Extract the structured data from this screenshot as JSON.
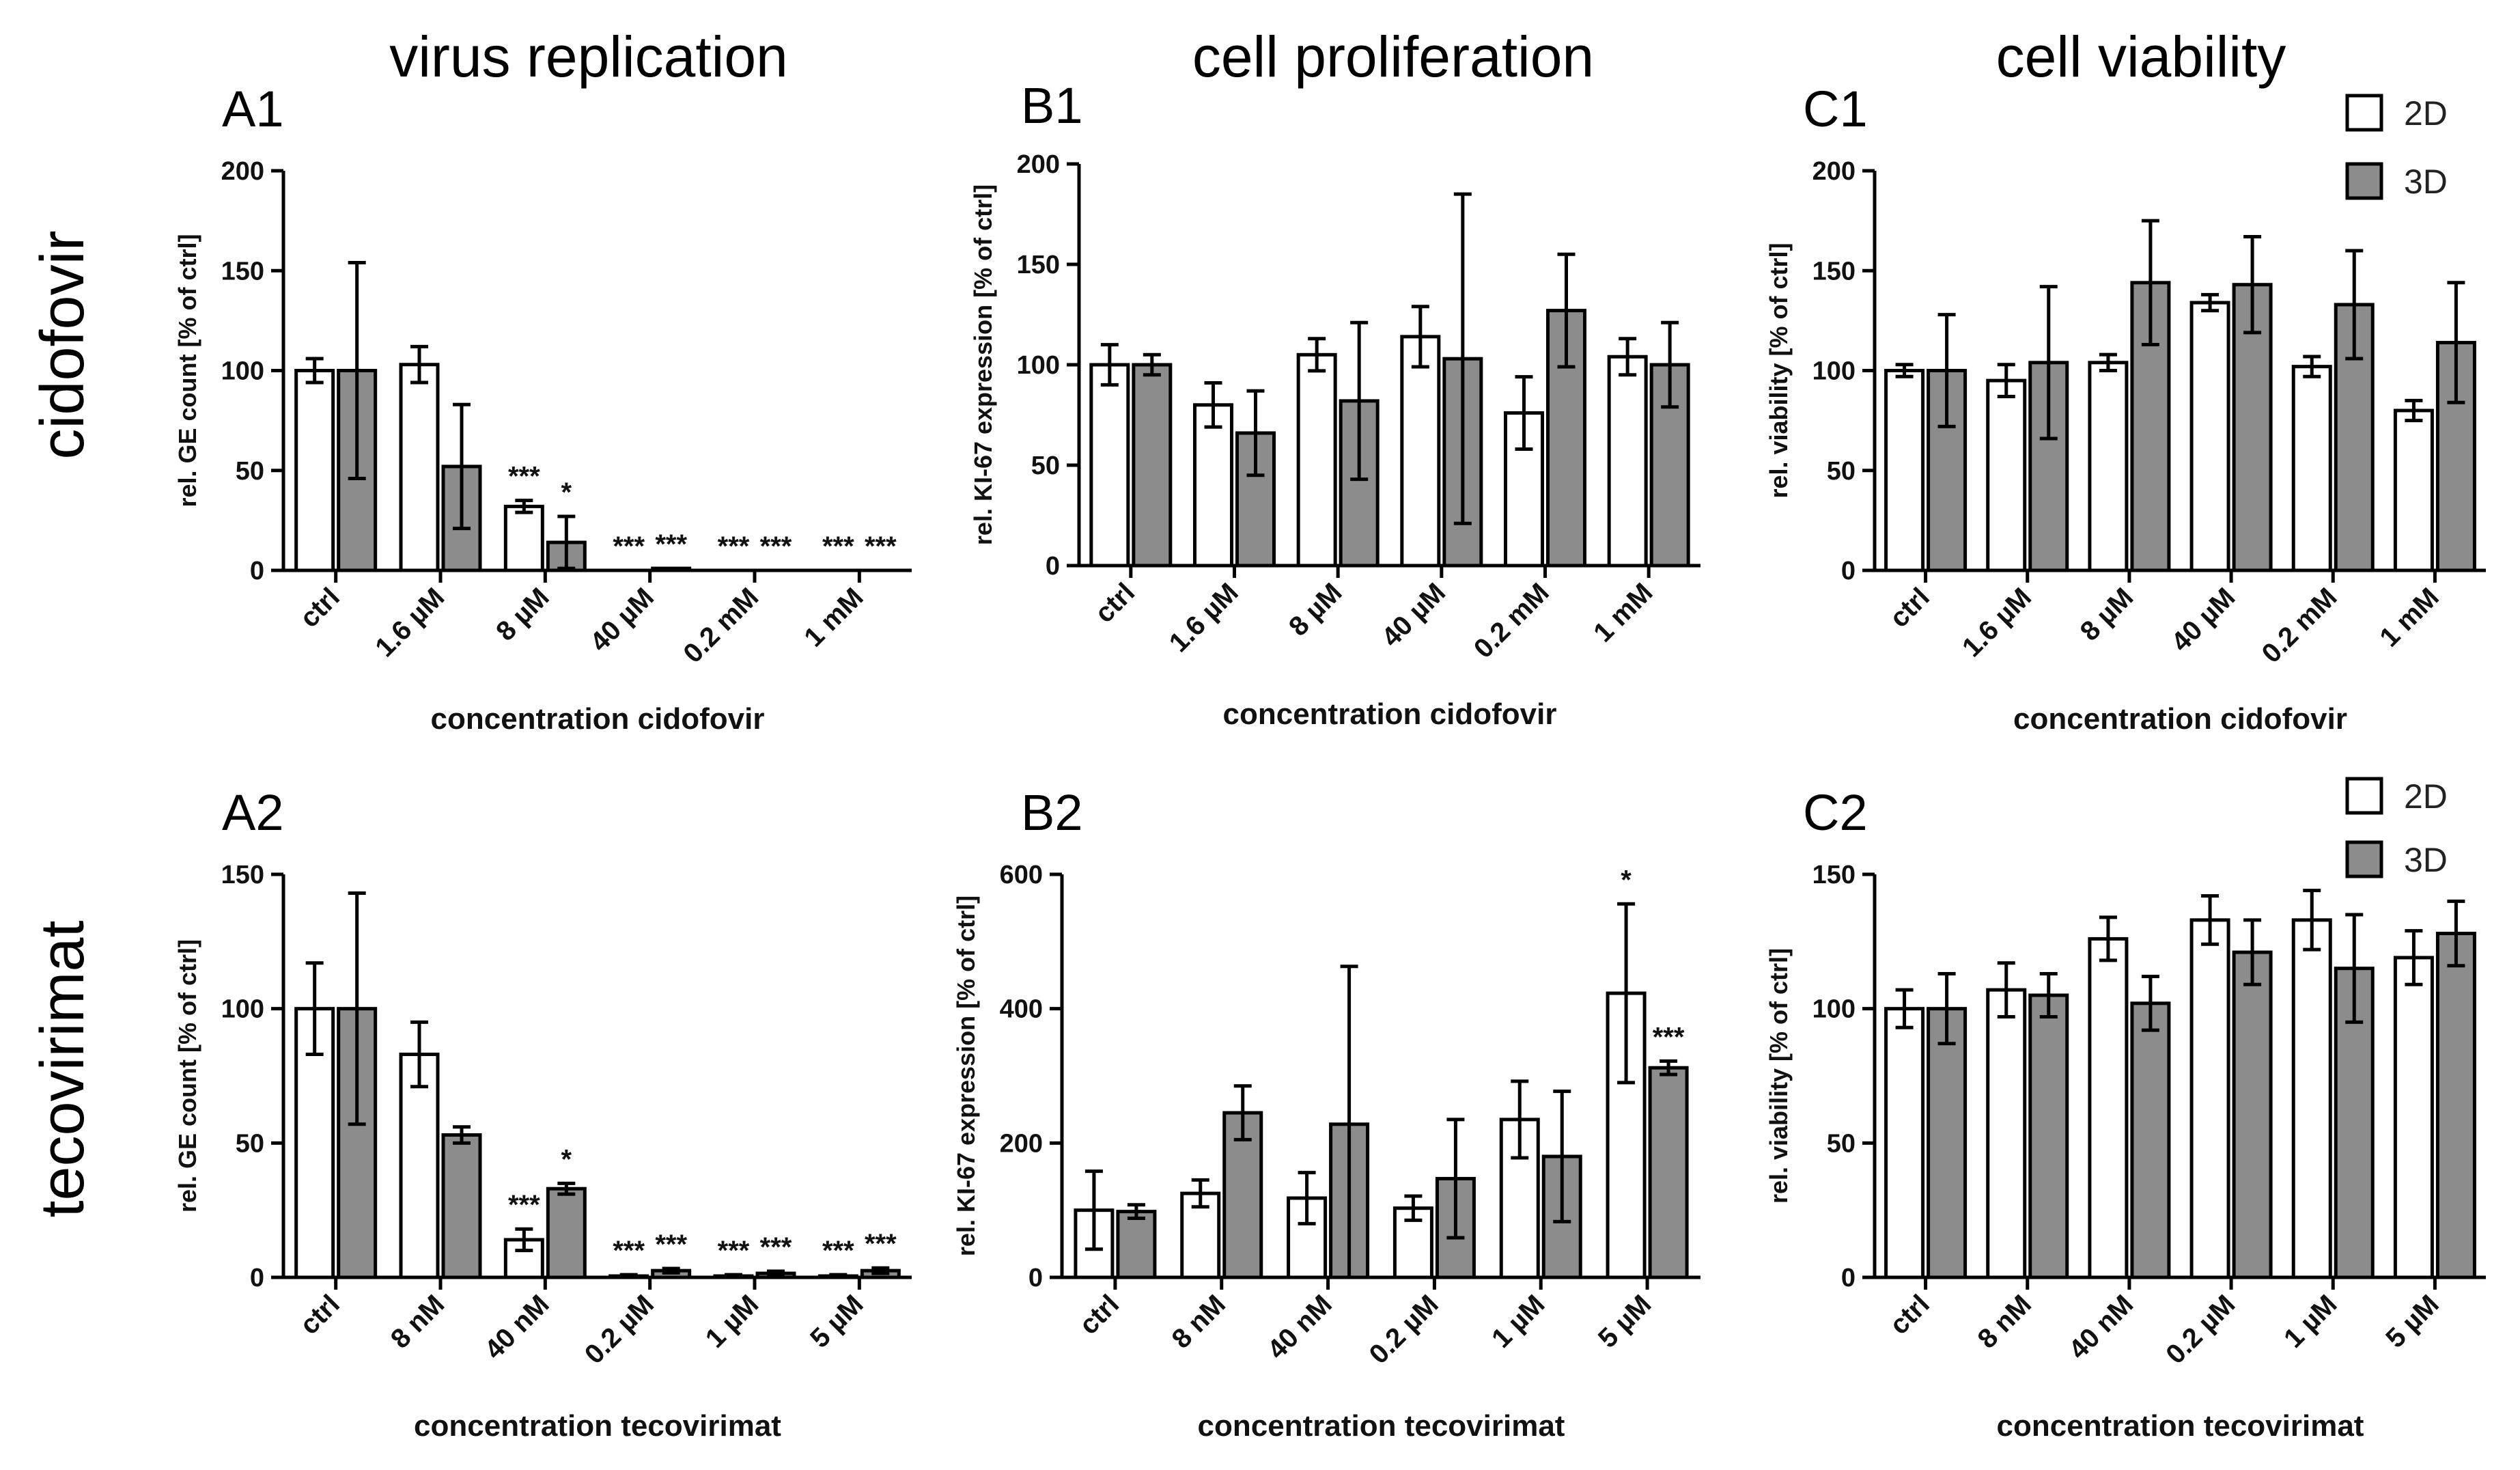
{
  "headers": [
    "virus replication",
    "cell proliferation",
    "cell viability"
  ],
  "row_labels": [
    "cidofovir",
    "tecovirimat"
  ],
  "legend": {
    "entries": [
      {
        "name": "2D",
        "color": "#ffffff"
      },
      {
        "name": "3D",
        "color": "#8c8c8c"
      }
    ]
  },
  "chart_data": [
    {
      "panel": "A1",
      "type": "bar",
      "categories": [
        "ctrl",
        "1.6 µM",
        "8 µM",
        "40 µM",
        "0.2 mM",
        "1 mM"
      ],
      "series": [
        {
          "name": "2D",
          "values": [
            100,
            103,
            32,
            0,
            0,
            0
          ],
          "errors": [
            6,
            9,
            3,
            0,
            0,
            0
          ],
          "sig": [
            "",
            "",
            "***",
            "***",
            "***",
            "***"
          ]
        },
        {
          "name": "3D",
          "values": [
            100,
            52,
            14,
            1,
            0,
            0
          ],
          "errors": [
            54,
            31,
            13,
            0,
            0,
            0
          ],
          "sig": [
            "",
            "",
            "*",
            "***",
            "***",
            "***"
          ]
        }
      ],
      "ylabel": "rel. GE count [% of ctrl]",
      "xlabel": "concentration cidofovir",
      "ylim": [
        0,
        200
      ],
      "yticks": [
        "0",
        "50",
        "100",
        "150",
        "200"
      ]
    },
    {
      "panel": "B1",
      "type": "bar",
      "categories": [
        "ctrl",
        "1.6 µM",
        "8 µM",
        "40 µM",
        "0.2 mM",
        "1 mM"
      ],
      "series": [
        {
          "name": "2D",
          "values": [
            100,
            80,
            105,
            114,
            76,
            104
          ],
          "errors": [
            10,
            11,
            8,
            15,
            18,
            9
          ],
          "sig": [
            "",
            "",
            "",
            "",
            "",
            ""
          ]
        },
        {
          "name": "3D",
          "values": [
            100,
            66,
            82,
            103,
            127,
            100
          ],
          "errors": [
            5,
            21,
            39,
            82,
            28,
            21
          ],
          "sig": [
            "",
            "",
            "",
            "",
            "",
            ""
          ]
        }
      ],
      "ylabel": "rel. KI-67 expression [% of ctrl]",
      "xlabel": "concentration cidofovir",
      "ylim": [
        0,
        200
      ],
      "yticks": [
        "0",
        "50",
        "100",
        "150",
        "200"
      ]
    },
    {
      "panel": "C1",
      "type": "bar",
      "categories": [
        "ctrl",
        "1.6 µM",
        "8 µM",
        "40 µM",
        "0.2 mM",
        "1 mM"
      ],
      "series": [
        {
          "name": "2D",
          "values": [
            100,
            95,
            104,
            134,
            102,
            80
          ],
          "errors": [
            3,
            8,
            4,
            4,
            5,
            5
          ],
          "sig": [
            "",
            "",
            "",
            "",
            "",
            ""
          ]
        },
        {
          "name": "3D",
          "values": [
            100,
            104,
            144,
            143,
            133,
            114
          ],
          "errors": [
            28,
            38,
            31,
            24,
            27,
            30
          ],
          "sig": [
            "",
            "",
            "",
            "",
            "",
            ""
          ]
        }
      ],
      "ylabel": "rel. viability [% of ctrl]",
      "xlabel": "concentration cidofovir",
      "ylim": [
        0,
        200
      ],
      "yticks": [
        "0",
        "50",
        "100",
        "150",
        "200"
      ]
    },
    {
      "panel": "A2",
      "type": "bar",
      "categories": [
        "ctrl",
        "8 nM",
        "40 nM",
        "0.2 µM",
        "1 µM",
        "5 µM"
      ],
      "series": [
        {
          "name": "2D",
          "values": [
            100,
            83,
            14,
            0.5,
            0.5,
            0.5
          ],
          "errors": [
            17,
            12,
            4,
            0.5,
            0.5,
            0.5
          ],
          "sig": [
            "",
            "",
            "***",
            "***",
            "***",
            "***"
          ]
        },
        {
          "name": "3D",
          "values": [
            100,
            53,
            33,
            2.5,
            1.5,
            2.5
          ],
          "errors": [
            43,
            3,
            2,
            0.8,
            0.8,
            1
          ],
          "sig": [
            "",
            "",
            "*",
            "***",
            "***",
            "***"
          ]
        }
      ],
      "ylabel": "rel. GE count [% of ctrl]",
      "xlabel": "concentration tecovirimat",
      "ylim": [
        0,
        150
      ],
      "yticks": [
        "0",
        "50",
        "100",
        "150"
      ]
    },
    {
      "panel": "B2",
      "type": "bar",
      "categories": [
        "ctrl",
        "8 nM",
        "40 nM",
        "0.2 µM",
        "1 µM",
        "5 µM"
      ],
      "series": [
        {
          "name": "2D",
          "values": [
            100,
            125,
            118,
            103,
            235,
            423
          ],
          "errors": [
            58,
            20,
            38,
            18,
            57,
            133
          ],
          "sig": [
            "",
            "",
            "",
            "",
            "",
            "*"
          ]
        },
        {
          "name": "3D",
          "values": [
            98,
            245,
            228,
            147,
            180,
            312
          ],
          "errors": [
            10,
            40,
            235,
            88,
            97,
            10
          ],
          "sig": [
            "",
            "",
            "",
            "",
            "",
            "***"
          ]
        }
      ],
      "ylabel": "rel. KI-67 expression [% of ctrl]",
      "xlabel": "concentration tecovirimat",
      "ylim": [
        0,
        600
      ],
      "yticks": [
        "0",
        "200",
        "400",
        "600"
      ]
    },
    {
      "panel": "C2",
      "type": "bar",
      "categories": [
        "ctrl",
        "8 nM",
        "40 nM",
        "0.2 µM",
        "1 µM",
        "5 µM"
      ],
      "series": [
        {
          "name": "2D",
          "values": [
            100,
            107,
            126,
            133,
            133,
            119
          ],
          "errors": [
            7,
            10,
            8,
            9,
            11,
            10
          ],
          "sig": [
            "",
            "",
            "",
            "",
            "",
            ""
          ]
        },
        {
          "name": "3D",
          "values": [
            100,
            105,
            102,
            121,
            115,
            128
          ],
          "errors": [
            13,
            8,
            10,
            12,
            20,
            12
          ],
          "sig": [
            "",
            "",
            "",
            "",
            "",
            ""
          ]
        }
      ],
      "ylabel": "rel. viability [% of ctrl]",
      "xlabel": "concentration tecovirimat",
      "ylim": [
        0,
        150
      ],
      "yticks": [
        "0",
        "50",
        "100",
        "150"
      ]
    }
  ]
}
